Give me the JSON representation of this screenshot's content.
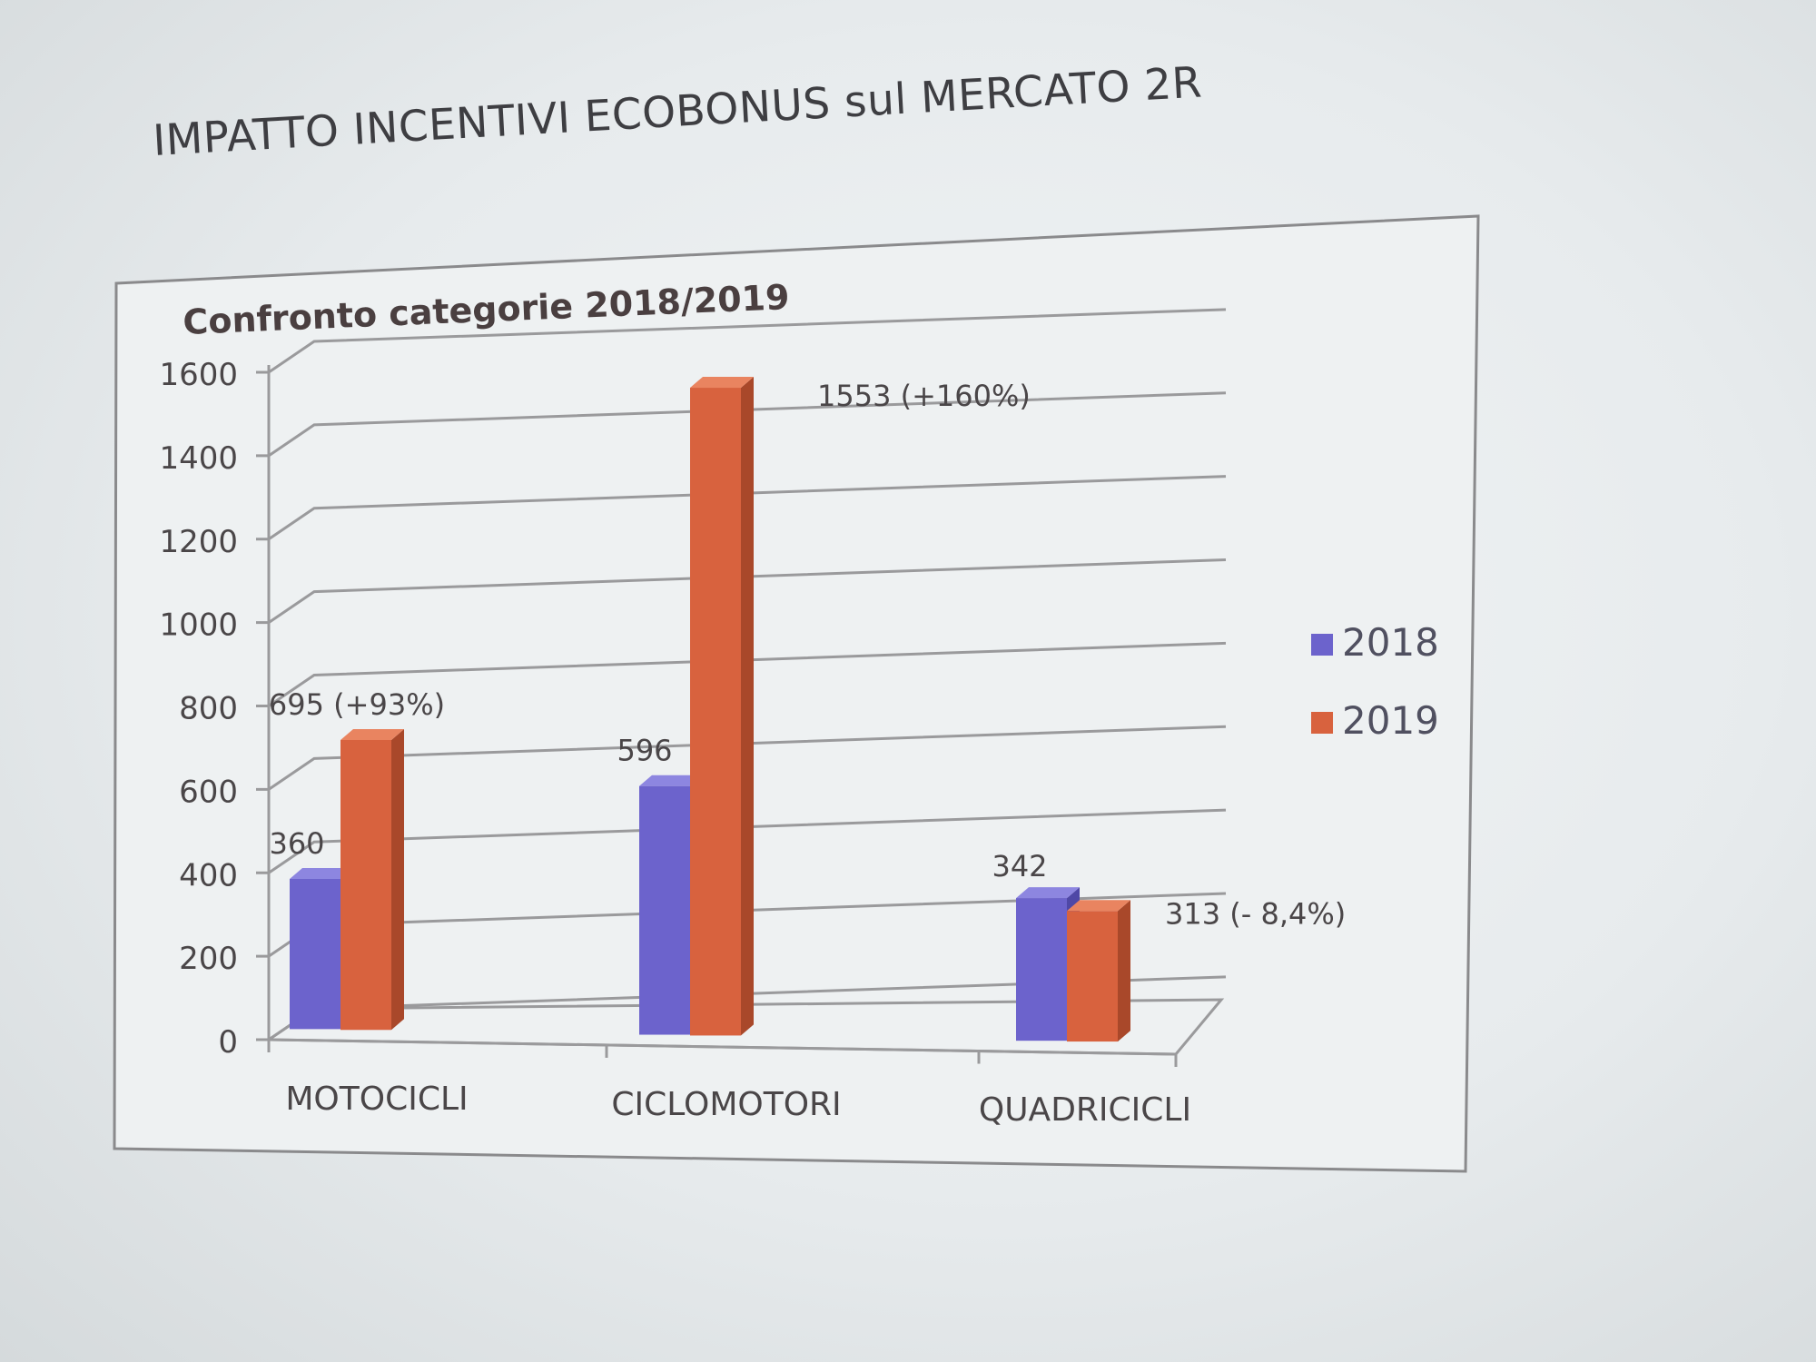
{
  "slide": {
    "title": "IMPATTO INCENTIVI ECOBONUS sul MERCATO 2R"
  },
  "colors": {
    "series_2018": "#6c63cc",
    "series_2018_dark": "#4f48a6",
    "series_2018_top": "#8d86e0",
    "series_2019": "#d8623e",
    "series_2019_dark": "#a9482a",
    "series_2019_top": "#e98460",
    "gridline": "#9a9a9c",
    "frame": "#8a8a8c"
  },
  "chart_data": {
    "type": "bar",
    "title": "Confronto categorie 2018/2019",
    "xlabel": "",
    "ylabel": "",
    "ylim": [
      0,
      1600
    ],
    "yticks": [
      0,
      200,
      400,
      600,
      800,
      1000,
      1200,
      1400,
      1600
    ],
    "categories": [
      "MOTOCICLI",
      "CICLOMOTORI",
      "QUADRICICLI"
    ],
    "series": [
      {
        "name": "2018",
        "values": [
          360,
          596,
          342
        ],
        "labels": [
          "360",
          "596",
          "342"
        ]
      },
      {
        "name": "2019",
        "values": [
          695,
          1553,
          313
        ],
        "labels": [
          "695 (+93%)",
          "1553 (+160%)",
          "313 (- 8,4%)"
        ]
      }
    ],
    "legend": "right",
    "grid": true,
    "three_d": true
  }
}
